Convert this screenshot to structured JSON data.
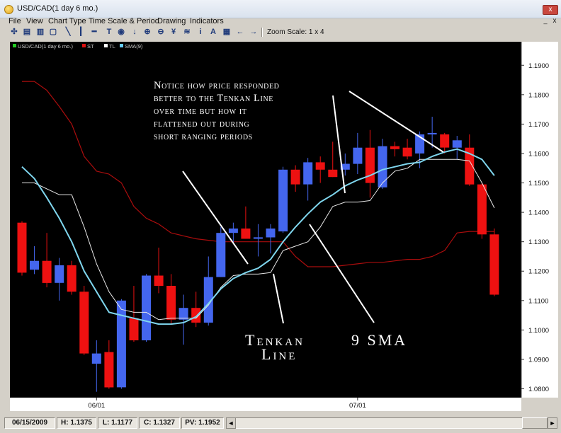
{
  "window": {
    "title": "USD/CAD(1 day  6 mo.)",
    "close_label": "x"
  },
  "menu": {
    "items": [
      "File",
      "View",
      "Chart Type",
      "Time Scale & Period",
      "Drawing",
      "Indicators"
    ],
    "min_label": "_",
    "close_label": "x"
  },
  "toolbar": {
    "icons": [
      "crosshair-icon",
      "print-icon",
      "save-icon",
      "copy-icon",
      "trendline-icon",
      "vertical-line-icon",
      "horizontal-line-icon",
      "text-tool-icon",
      "circle-icon",
      "down-arrow-icon",
      "zoom-in-icon",
      "zoom-out-icon",
      "fibonacci-icon",
      "measure-icon",
      "info-icon",
      "text-a-icon",
      "grid-icon",
      "left-arrow-icon",
      "right-arrow-icon"
    ],
    "icon_glyphs": [
      "✣",
      "▤",
      "▥",
      "▢",
      "╲",
      "┃",
      "━",
      "T",
      "◉",
      "↓",
      "⊕",
      "⊖",
      "¥",
      "≋",
      "i",
      "A",
      "▦",
      "←",
      "→"
    ],
    "zoom_label": "Zoom Scale: 1 x 4"
  },
  "legend": [
    {
      "label": "USD/CAD(1 day  6 mo.)",
      "color": "#22cc22"
    },
    {
      "label": "ST",
      "color": "#dd1111"
    },
    {
      "label": "TL",
      "color": "#ffffff"
    },
    {
      "label": "SMA(9)",
      "color": "#66ccff"
    }
  ],
  "annotations": {
    "notice_lines": [
      "Notice how price responded",
      "better to the Tenkan Line",
      "over time but how it",
      "flattened out during",
      "short ranging periods"
    ],
    "tenkan_lines": [
      "Tenkan",
      "Line"
    ],
    "sma_label": "9 SMA"
  },
  "colors": {
    "bull": "#4466ee",
    "bear": "#ee1111",
    "st": "#aa0d0d",
    "tl": "#e8e8e8",
    "sma": "#7fd6ee",
    "background": "#000000"
  },
  "chart_data": {
    "type": "candlestick",
    "symbol": "USD/CAD",
    "x_tick_labels": [
      "06/01",
      "07/01"
    ],
    "y_ticks": [
      1.08,
      1.09,
      1.1,
      1.11,
      1.12,
      1.13,
      1.14,
      1.15,
      1.16,
      1.17,
      1.18,
      1.19
    ],
    "ylim": [
      1.077,
      1.198
    ],
    "ohlc": [
      {
        "open": 1.1365,
        "high": 1.137,
        "low": 1.1185,
        "close": 1.1195
      },
      {
        "open": 1.1205,
        "high": 1.1285,
        "low": 1.119,
        "close": 1.1235
      },
      {
        "open": 1.1235,
        "high": 1.133,
        "low": 1.1145,
        "close": 1.116
      },
      {
        "open": 1.116,
        "high": 1.1245,
        "low": 1.11,
        "close": 1.122
      },
      {
        "open": 1.122,
        "high": 1.1235,
        "low": 1.112,
        "close": 1.113
      },
      {
        "open": 1.113,
        "high": 1.115,
        "low": 1.0915,
        "close": 1.092
      },
      {
        "open": 1.0885,
        "high": 1.0965,
        "low": 1.079,
        "close": 1.092
      },
      {
        "open": 1.0925,
        "high": 1.0965,
        "low": 1.08,
        "close": 1.0805
      },
      {
        "open": 1.0805,
        "high": 1.1105,
        "low": 1.08,
        "close": 1.11
      },
      {
        "open": 1.104,
        "high": 1.115,
        "low": 1.096,
        "close": 1.0965
      },
      {
        "open": 1.0965,
        "high": 1.119,
        "low": 1.096,
        "close": 1.1185
      },
      {
        "open": 1.1185,
        "high": 1.128,
        "low": 1.1125,
        "close": 1.115
      },
      {
        "open": 1.115,
        "high": 1.119,
        "low": 1.102,
        "close": 1.1035
      },
      {
        "open": 1.1035,
        "high": 1.112,
        "low": 1.095,
        "close": 1.1075
      },
      {
        "open": 1.1075,
        "high": 1.113,
        "low": 1.101,
        "close": 1.1025
      },
      {
        "open": 1.1025,
        "high": 1.125,
        "low": 1.1015,
        "close": 1.118
      },
      {
        "open": 1.118,
        "high": 1.135,
        "low": 1.118,
        "close": 1.133
      },
      {
        "open": 1.133,
        "high": 1.1365,
        "low": 1.1295,
        "close": 1.1345
      },
      {
        "open": 1.1345,
        "high": 1.142,
        "low": 1.131,
        "close": 1.131
      },
      {
        "open": 1.131,
        "high": 1.136,
        "low": 1.125,
        "close": 1.1315
      },
      {
        "open": 1.1315,
        "high": 1.136,
        "low": 1.126,
        "close": 1.1345
      },
      {
        "open": 1.1335,
        "high": 1.1555,
        "low": 1.133,
        "close": 1.1545
      },
      {
        "open": 1.1545,
        "high": 1.156,
        "low": 1.147,
        "close": 1.1495
      },
      {
        "open": 1.1495,
        "high": 1.1585,
        "low": 1.144,
        "close": 1.157
      },
      {
        "open": 1.157,
        "high": 1.159,
        "low": 1.15,
        "close": 1.1545
      },
      {
        "open": 1.1545,
        "high": 1.164,
        "low": 1.152,
        "close": 1.152
      },
      {
        "open": 1.1545,
        "high": 1.16,
        "low": 1.1525,
        "close": 1.1565
      },
      {
        "open": 1.1565,
        "high": 1.167,
        "low": 1.153,
        "close": 1.162
      },
      {
        "open": 1.162,
        "high": 1.168,
        "low": 1.145,
        "close": 1.15
      },
      {
        "open": 1.1485,
        "high": 1.165,
        "low": 1.148,
        "close": 1.1625
      },
      {
        "open": 1.1625,
        "high": 1.164,
        "low": 1.159,
        "close": 1.1615
      },
      {
        "open": 1.162,
        "high": 1.165,
        "low": 1.158,
        "close": 1.159
      },
      {
        "open": 1.16,
        "high": 1.1675,
        "low": 1.155,
        "close": 1.1665
      },
      {
        "open": 1.1665,
        "high": 1.1725,
        "low": 1.162,
        "close": 1.167
      },
      {
        "open": 1.1665,
        "high": 1.167,
        "low": 1.16,
        "close": 1.162
      },
      {
        "open": 1.162,
        "high": 1.166,
        "low": 1.158,
        "close": 1.1645
      },
      {
        "open": 1.162,
        "high": 1.1665,
        "low": 1.149,
        "close": 1.1495
      },
      {
        "open": 1.1495,
        "high": 1.15,
        "low": 1.131,
        "close": 1.1325
      },
      {
        "open": 1.1325,
        "high": 1.1345,
        "low": 1.1115,
        "close": 1.112
      }
    ],
    "series": [
      {
        "name": "ST",
        "color": "#aa0d0d",
        "values": [
          1.1845,
          1.1845,
          1.1815,
          1.176,
          1.17,
          1.159,
          1.154,
          1.153,
          1.15,
          1.142,
          1.138,
          1.136,
          1.133,
          1.132,
          1.131,
          1.1305,
          1.13,
          1.13,
          1.13,
          1.13,
          1.13,
          1.13,
          1.125,
          1.1215,
          1.1215,
          1.1215,
          1.122,
          1.1225,
          1.123,
          1.123,
          1.1235,
          1.124,
          1.124,
          1.125,
          1.127,
          1.133,
          1.1335,
          1.1335,
          1.1335
        ]
      },
      {
        "name": "TL",
        "color": "#e8e8e8",
        "values": [
          1.15,
          1.15,
          1.148,
          1.146,
          1.146,
          1.135,
          1.1225,
          1.113,
          1.107,
          1.106,
          1.106,
          1.1035,
          1.104,
          1.104,
          1.104,
          1.1085,
          1.1145,
          1.1185,
          1.119,
          1.119,
          1.1195,
          1.127,
          1.1285,
          1.13,
          1.135,
          1.142,
          1.1435,
          1.1435,
          1.144,
          1.15,
          1.154,
          1.155,
          1.158,
          1.158,
          1.158,
          1.158,
          1.1575,
          1.15,
          1.1415
        ]
      },
      {
        "name": "SMA(9)",
        "color": "#7fd6ee",
        "values": [
          1.1555,
          1.1515,
          1.145,
          1.138,
          1.13,
          1.12,
          1.113,
          1.106,
          1.105,
          1.104,
          1.103,
          1.102,
          1.102,
          1.1025,
          1.1045,
          1.109,
          1.114,
          1.1175,
          1.1195,
          1.121,
          1.124,
          1.13,
          1.135,
          1.1395,
          1.1435,
          1.146,
          1.149,
          1.151,
          1.1525,
          1.1545,
          1.1555,
          1.1565,
          1.157,
          1.159,
          1.1605,
          1.1615,
          1.16,
          1.158,
          1.1525
        ]
      }
    ],
    "candle_count": 39
  },
  "status": {
    "date": "06/15/2009",
    "high": "H: 1.1375",
    "low": "L: 1.1177",
    "close": "C: 1.1327",
    "pv": "PV: 1.1952"
  },
  "scroll": {
    "left_label": "◄",
    "right_label": "►"
  }
}
